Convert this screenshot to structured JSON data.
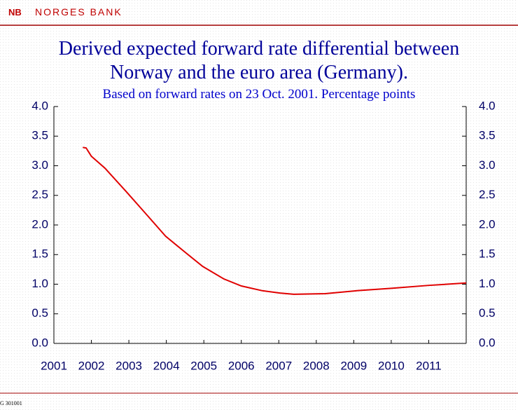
{
  "header": {
    "logo": "NB",
    "brand": "NORGES BANK"
  },
  "footer": {
    "code": "G 301001"
  },
  "chart_data": {
    "type": "line",
    "title": [
      "Derived expected forward rate differential between",
      "Norway and the euro area (Germany)."
    ],
    "subtitle": "Based on forward rates on 23 Oct. 2001. Percentage points",
    "xlim": [
      2001,
      2012
    ],
    "xticks": [
      2001,
      2002,
      2003,
      2004,
      2005,
      2006,
      2007,
      2008,
      2009,
      2010,
      2011
    ],
    "ylim": [
      0,
      4
    ],
    "yticks": [
      {
        "value": 0,
        "label": "0.0"
      },
      {
        "value": 0.5,
        "label": "0.5"
      },
      {
        "value": 1,
        "label": "1.0"
      },
      {
        "value": 1.5,
        "label": "1.5"
      },
      {
        "value": 2,
        "label": "2.0"
      },
      {
        "value": 2.5,
        "label": "2.5"
      },
      {
        "value": 3,
        "label": "3.0"
      },
      {
        "value": 3.5,
        "label": "3.5"
      },
      {
        "value": 4,
        "label": "4.0"
      }
    ],
    "y2lim": [
      0,
      4
    ],
    "y2ticks": [
      {
        "value": 0,
        "label": "0.0"
      },
      {
        "value": 0.5,
        "label": "0.5"
      },
      {
        "value": 1,
        "label": "1.0"
      },
      {
        "value": 1.5,
        "label": "1.5"
      },
      {
        "value": 2,
        "label": "2.0"
      },
      {
        "value": 2.5,
        "label": "2.5"
      },
      {
        "value": 3,
        "label": "3.0"
      },
      {
        "value": 3.5,
        "label": "3.5"
      },
      {
        "value": 4,
        "label": "4.0"
      }
    ],
    "grid": false,
    "series": [
      {
        "color": "#e00000",
        "x": [
          2001.77,
          2001.86,
          2002.0,
          2002.36,
          2002.92,
          2003.48,
          2003.98,
          2004.5,
          2004.97,
          2005.53,
          2006.0,
          2006.56,
          2007.03,
          2007.4,
          2008.24,
          2009.08,
          2010.0,
          2011.0,
          2012.0
        ],
        "values": [
          3.31,
          3.3,
          3.16,
          2.96,
          2.57,
          2.17,
          1.81,
          1.54,
          1.3,
          1.09,
          0.97,
          0.89,
          0.85,
          0.83,
          0.84,
          0.89,
          0.93,
          0.98,
          1.02
        ]
      }
    ]
  }
}
